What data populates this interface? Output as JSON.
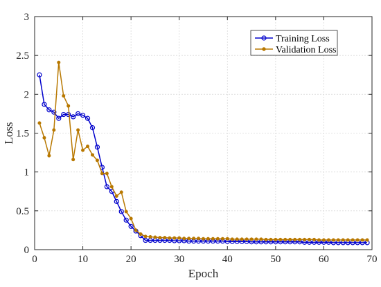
{
  "chart_data": {
    "type": "line",
    "xlabel": "Epoch",
    "ylabel": "Loss",
    "xlim": [
      0,
      70
    ],
    "ylim": [
      0,
      3
    ],
    "xticks": [
      0,
      10,
      20,
      30,
      40,
      50,
      60,
      70
    ],
    "yticks": [
      0,
      0.5,
      1,
      1.5,
      2,
      2.5,
      3
    ],
    "ytick_labels": [
      "0",
      "0.5",
      "1",
      "1.5",
      "2",
      "2.5",
      "3"
    ],
    "grid": true,
    "legend_position": "top-right",
    "x": [
      1,
      2,
      3,
      4,
      5,
      6,
      7,
      8,
      9,
      10,
      11,
      12,
      13,
      14,
      15,
      16,
      17,
      18,
      19,
      20,
      21,
      22,
      23,
      24,
      25,
      26,
      27,
      28,
      29,
      30,
      31,
      32,
      33,
      34,
      35,
      36,
      37,
      38,
      39,
      40,
      41,
      42,
      43,
      44,
      45,
      46,
      47,
      48,
      49,
      50,
      51,
      52,
      53,
      54,
      55,
      56,
      57,
      58,
      59,
      60,
      61,
      62,
      63,
      64,
      65,
      66,
      67,
      68,
      69
    ],
    "series": [
      {
        "name": "Training Loss",
        "color": "#0000cc",
        "marker": "circle",
        "values": [
          2.25,
          1.87,
          1.8,
          1.77,
          1.69,
          1.74,
          1.74,
          1.71,
          1.75,
          1.73,
          1.69,
          1.57,
          1.32,
          1.06,
          0.81,
          0.75,
          0.62,
          0.49,
          0.38,
          0.3,
          0.24,
          0.18,
          0.12,
          0.12,
          0.12,
          0.12,
          0.12,
          0.12,
          0.115,
          0.115,
          0.115,
          0.11,
          0.11,
          0.11,
          0.11,
          0.11,
          0.11,
          0.11,
          0.11,
          0.105,
          0.105,
          0.105,
          0.105,
          0.105,
          0.1,
          0.1,
          0.1,
          0.1,
          0.1,
          0.1,
          0.1,
          0.1,
          0.1,
          0.1,
          0.1,
          0.095,
          0.095,
          0.095,
          0.095,
          0.095,
          0.095,
          0.09,
          0.09,
          0.09,
          0.09,
          0.09,
          0.09,
          0.09,
          0.09
        ]
      },
      {
        "name": "Validation Loss",
        "color": "#b87800",
        "marker": "dot",
        "values": [
          1.63,
          1.44,
          1.21,
          1.54,
          2.41,
          1.98,
          1.85,
          1.16,
          1.54,
          1.28,
          1.33,
          1.22,
          1.15,
          0.98,
          0.98,
          0.81,
          0.69,
          0.74,
          0.49,
          0.4,
          0.25,
          0.2,
          0.17,
          0.165,
          0.16,
          0.155,
          0.155,
          0.15,
          0.15,
          0.15,
          0.145,
          0.145,
          0.145,
          0.145,
          0.14,
          0.14,
          0.14,
          0.14,
          0.14,
          0.14,
          0.135,
          0.135,
          0.135,
          0.135,
          0.135,
          0.135,
          0.135,
          0.13,
          0.13,
          0.13,
          0.13,
          0.13,
          0.13,
          0.13,
          0.13,
          0.13,
          0.13,
          0.13,
          0.125,
          0.125,
          0.125,
          0.125,
          0.125,
          0.125,
          0.125,
          0.125,
          0.125,
          0.125,
          0.125
        ]
      }
    ]
  }
}
